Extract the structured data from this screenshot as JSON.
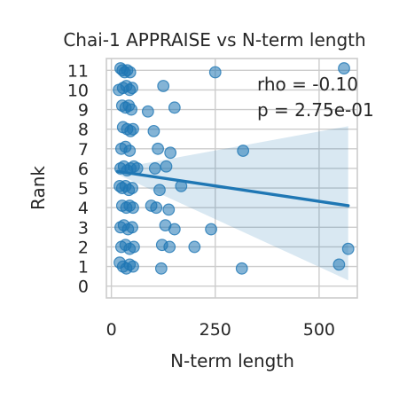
{
  "chart_data": {
    "type": "scatter",
    "title": "Chai-1 APPRAISE vs N-term length",
    "xlabel": "N-term length",
    "ylabel": "Rank",
    "xlim": [
      -12,
      592
    ],
    "ylim": [
      -0.6,
      11.6
    ],
    "xticks": [
      0,
      250,
      500
    ],
    "yticks": [
      0,
      1,
      2,
      3,
      4,
      5,
      6,
      7,
      8,
      9,
      10,
      11
    ],
    "grid": true,
    "annotation": [
      "rho = -0.10",
      "p = 2.75e-01"
    ],
    "colors": {
      "points": "#1f77b4",
      "line": "#1f77b4",
      "band": "#1f77b4",
      "grid": "#cccccc"
    },
    "points": [
      [
        22,
        11.1
      ],
      [
        27,
        11.0
      ],
      [
        32,
        10.9
      ],
      [
        38,
        11.0
      ],
      [
        45,
        10.9
      ],
      [
        250,
        10.9
      ],
      [
        560,
        11.1
      ],
      [
        18,
        10.0
      ],
      [
        28,
        10.1
      ],
      [
        36,
        10.2
      ],
      [
        44,
        10.0
      ],
      [
        50,
        10.1
      ],
      [
        125,
        10.2
      ],
      [
        26,
        9.2
      ],
      [
        34,
        9.1
      ],
      [
        42,
        9.2
      ],
      [
        48,
        9.0
      ],
      [
        88,
        8.9
      ],
      [
        152,
        9.1
      ],
      [
        28,
        8.1
      ],
      [
        38,
        8.0
      ],
      [
        46,
        7.9
      ],
      [
        52,
        8.0
      ],
      [
        102,
        7.9
      ],
      [
        24,
        7.0
      ],
      [
        34,
        7.1
      ],
      [
        44,
        6.9
      ],
      [
        112,
        7.0
      ],
      [
        142,
        6.8
      ],
      [
        317,
        6.9
      ],
      [
        22,
        6.0
      ],
      [
        30,
        6.1
      ],
      [
        38,
        5.9
      ],
      [
        46,
        6.0
      ],
      [
        54,
        6.1
      ],
      [
        62,
        6.0
      ],
      [
        105,
        6.0
      ],
      [
        132,
        6.1
      ],
      [
        20,
        5.1
      ],
      [
        26,
        5.0
      ],
      [
        34,
        5.1
      ],
      [
        42,
        4.9
      ],
      [
        50,
        5.0
      ],
      [
        116,
        4.9
      ],
      [
        168,
        5.1
      ],
      [
        26,
        4.1
      ],
      [
        36,
        4.0
      ],
      [
        44,
        4.1
      ],
      [
        52,
        4.0
      ],
      [
        96,
        4.1
      ],
      [
        108,
        4.0
      ],
      [
        138,
        3.9
      ],
      [
        22,
        3.0
      ],
      [
        30,
        3.1
      ],
      [
        40,
        2.9
      ],
      [
        50,
        3.0
      ],
      [
        130,
        3.1
      ],
      [
        152,
        2.9
      ],
      [
        240,
        2.9
      ],
      [
        24,
        2.0
      ],
      [
        34,
        2.1
      ],
      [
        44,
        1.9
      ],
      [
        54,
        2.0
      ],
      [
        122,
        2.1
      ],
      [
        140,
        2.0
      ],
      [
        200,
        2.0
      ],
      [
        570,
        1.9
      ],
      [
        20,
        1.2
      ],
      [
        28,
        1.0
      ],
      [
        36,
        0.9
      ],
      [
        44,
        1.1
      ],
      [
        52,
        1.0
      ],
      [
        120,
        0.9
      ],
      [
        314,
        0.9
      ],
      [
        548,
        1.1
      ]
    ],
    "regression": {
      "x0": 15,
      "y0": 5.85,
      "x1": 570,
      "y1": 4.1
    },
    "ci_band": {
      "upper_at_x1": 8.15,
      "lower_at_x1": 0.3,
      "halfwidth_at_x0": 0.15
    }
  }
}
